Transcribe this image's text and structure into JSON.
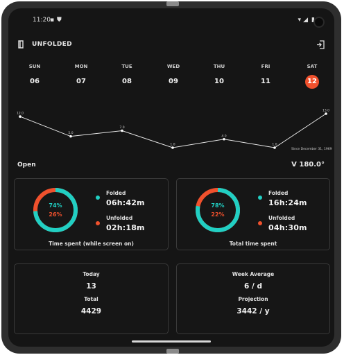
{
  "status_bar": {
    "time": "11:20"
  },
  "header": {
    "title": "UNFOLDED"
  },
  "week": {
    "days": [
      {
        "name": "SUN",
        "date": "06"
      },
      {
        "name": "MON",
        "date": "07"
      },
      {
        "name": "TUE",
        "date": "08"
      },
      {
        "name": "WED",
        "date": "09"
      },
      {
        "name": "THU",
        "date": "10"
      },
      {
        "name": "FRI",
        "date": "11"
      },
      {
        "name": "SAT",
        "date": "12"
      }
    ],
    "selected_index": 6
  },
  "chart_data": {
    "type": "line",
    "x": [
      "SUN",
      "MON",
      "TUE",
      "WED",
      "THU",
      "FRI",
      "SAT"
    ],
    "values": [
      12.0,
      5.0,
      7.0,
      1.0,
      4.0,
      1.0,
      13.0
    ],
    "point_labels": [
      "12.0",
      "5.0",
      "7.0",
      "1.0",
      "4.0",
      "1.0",
      "13.0"
    ],
    "annotation": "Since December 31, 1969"
  },
  "state": {
    "open_label": "Open",
    "angle": "180.0°"
  },
  "cards": {
    "screen_on": {
      "folded_pct": "74%",
      "unfolded_pct": "26%",
      "folded_fraction": 0.74,
      "folded_label": "Folded",
      "folded_value": "06h:42m",
      "unfolded_label": "Unfolded",
      "unfolded_value": "02h:18m",
      "caption": "Time spent (while screen on)"
    },
    "total": {
      "folded_pct": "78%",
      "unfolded_pct": "22%",
      "folded_fraction": 0.78,
      "folded_label": "Folded",
      "folded_value": "16h:24m",
      "unfolded_label": "Unfolded",
      "unfolded_value": "04h:30m",
      "caption": "Total time spent"
    },
    "counts": {
      "today_label": "Today",
      "today_value": "13",
      "total_label": "Total",
      "total_value": "4429"
    },
    "average": {
      "week_label": "Week Average",
      "week_value": "6 / d",
      "projection_label": "Projection",
      "projection_value": "3442 / y"
    }
  },
  "colors": {
    "folded": "#21cfc3",
    "unfolded": "#f0512d",
    "background": "#151515"
  }
}
